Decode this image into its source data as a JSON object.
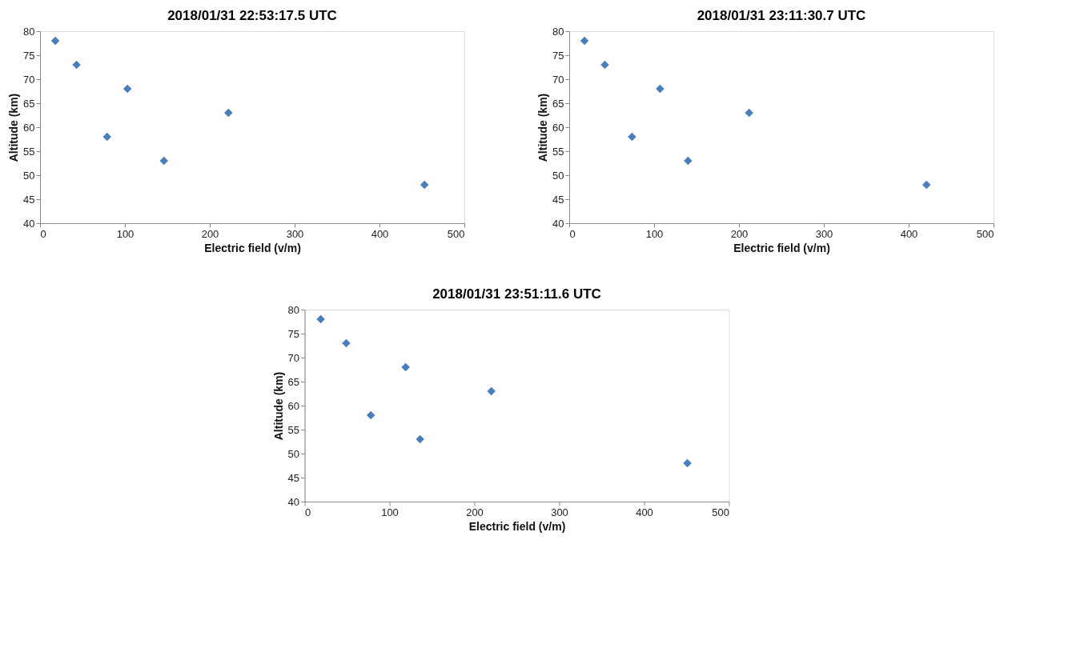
{
  "chart_data": [
    {
      "type": "scatter",
      "title": "2018/01/31     22:53:17.5 UTC",
      "xlabel": "Electric field (v/m)",
      "ylabel": "Altitude (km)",
      "marker": "diamond",
      "color": "#4a7ebb",
      "x": [
        18,
        43,
        103,
        79,
        146,
        222,
        453
      ],
      "values": [
        78,
        73,
        68,
        58,
        53,
        63,
        48
      ],
      "xlim": [
        0,
        500
      ],
      "xticks": [
        0,
        100,
        200,
        300,
        400,
        500
      ],
      "ylim": [
        40,
        80
      ],
      "yticks": [
        40,
        45,
        50,
        55,
        60,
        65,
        70,
        75,
        80
      ]
    },
    {
      "type": "scatter",
      "title": "2018/01/31     23:11:30.7 UTC",
      "xlabel": "Electric field (v/m)",
      "ylabel": "Altitude (km)",
      "marker": "diamond",
      "color": "#4a7ebb",
      "x": [
        18,
        42,
        107,
        74,
        140,
        212,
        421
      ],
      "values": [
        78,
        73,
        68,
        58,
        53,
        63,
        48
      ],
      "xlim": [
        0,
        500
      ],
      "xticks": [
        0,
        100,
        200,
        300,
        400,
        500
      ],
      "ylim": [
        40,
        80
      ],
      "yticks": [
        40,
        45,
        50,
        55,
        60,
        65,
        70,
        75,
        80
      ]
    },
    {
      "type": "scatter",
      "title": "2018/01/31     23:51:11.6 UTC",
      "xlabel": "Electric field (v/m)",
      "ylabel": "Altitude (km)",
      "marker": "diamond",
      "color": "#4a7ebb",
      "x": [
        19,
        49,
        119,
        78,
        136,
        220,
        451
      ],
      "values": [
        78,
        73,
        68,
        58,
        53,
        63,
        48
      ],
      "xlim": [
        0,
        500
      ],
      "xticks": [
        0,
        100,
        200,
        300,
        400,
        500
      ],
      "ylim": [
        40,
        80
      ],
      "yticks": [
        40,
        45,
        50,
        55,
        60,
        65,
        70,
        75,
        80
      ]
    }
  ]
}
